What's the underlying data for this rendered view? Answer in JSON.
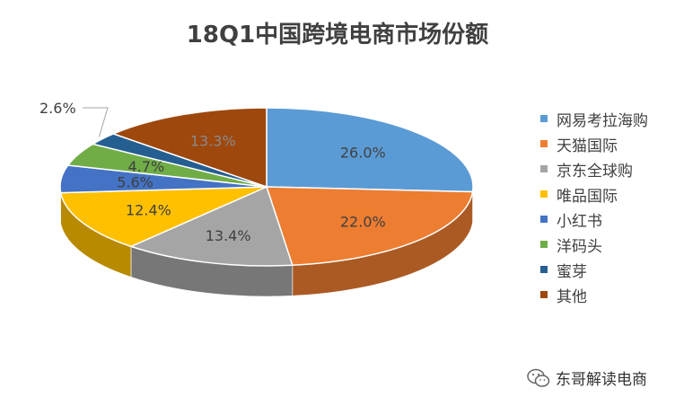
{
  "chart_data": {
    "type": "pie",
    "title": "18Q1中国跨境电商市场份额",
    "categories": [
      "网易考拉海购",
      "天猫国际",
      "京东全球购",
      "唯品国际",
      "小红书",
      "洋码头",
      "蜜芽",
      "其他"
    ],
    "values": [
      26.0,
      22.0,
      13.4,
      12.4,
      5.6,
      4.7,
      2.6,
      13.3
    ],
    "labels": [
      "26.0%",
      "22.0%",
      "13.4%",
      "12.4%",
      "5.6%",
      "4.7%",
      "2.6%",
      "13.3%"
    ],
    "colors": [
      "#5B9BD5",
      "#ED7D31",
      "#A5A5A5",
      "#FFC000",
      "#4472C4",
      "#70AD47",
      "#255E91",
      "#9E480E"
    ],
    "legend_position": "right",
    "style": "3d"
  },
  "watermark": {
    "text": "东哥解读电商",
    "icon": "wechat-icon"
  }
}
